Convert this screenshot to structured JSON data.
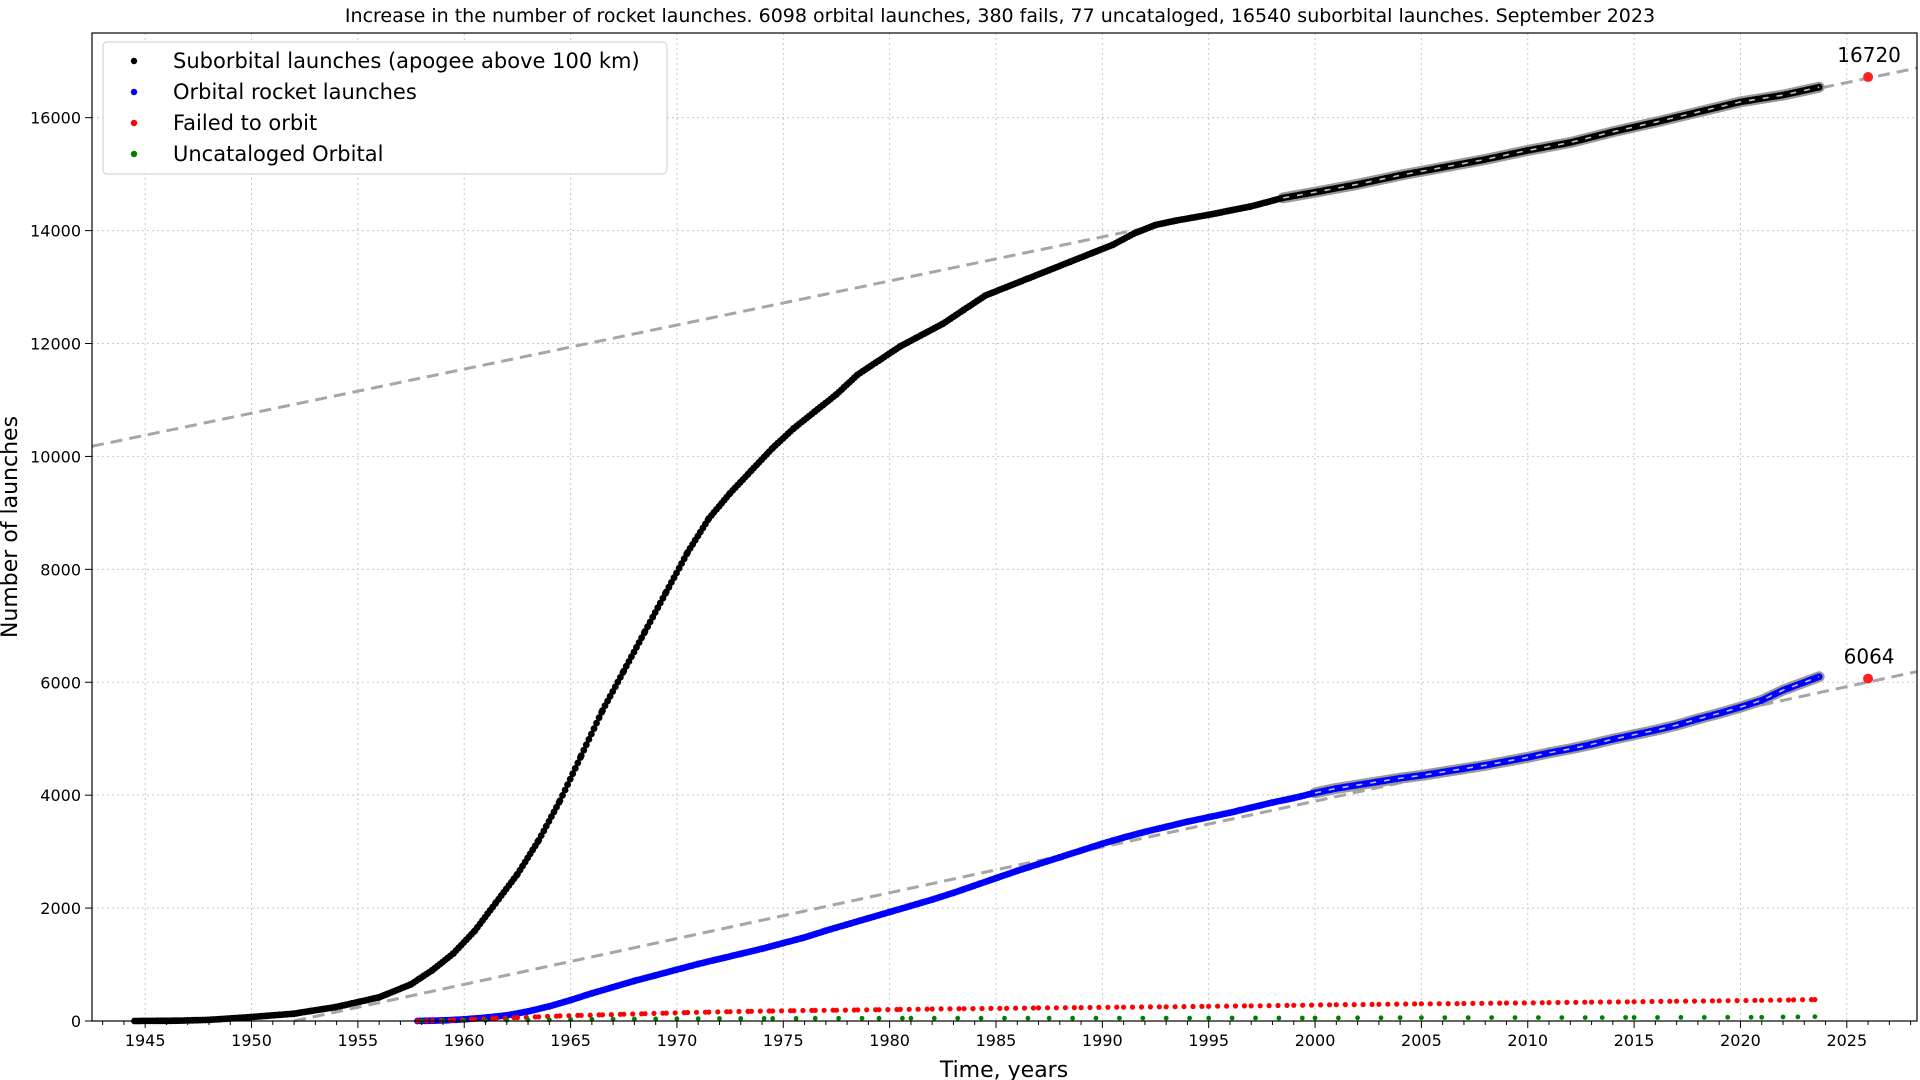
{
  "chart_data": {
    "type": "scatter",
    "title": "Increase in the number of rocket launches. 6098 orbital launches, 380 fails, 77 uncataloged, 16540 suborbital launches. September 2023",
    "xlabel": "Time, years",
    "ylabel": "Number of launches",
    "xlim": [
      1942.5,
      2028.3
    ],
    "ylim": [
      0,
      17500
    ],
    "x_ticks": [
      1945,
      1950,
      1955,
      1960,
      1965,
      1970,
      1975,
      1980,
      1985,
      1990,
      1995,
      2000,
      2005,
      2010,
      2015,
      2020,
      2025
    ],
    "y_ticks": [
      0,
      2000,
      4000,
      6000,
      8000,
      10000,
      12000,
      14000,
      16000
    ],
    "grid": true,
    "legend_position": "upper-left",
    "colors": {
      "suborbital": "#000000",
      "orbital": "#0000ff",
      "failed": "#ff0000",
      "uncataloged": "#008000",
      "trend": "#a6a6a6",
      "projection": "#ff2020"
    },
    "series": [
      {
        "name": "Suborbital launches (apogee above 100 km)",
        "key": "suborbital",
        "points": [
          [
            1944.5,
            0
          ],
          [
            1946.5,
            5
          ],
          [
            1948,
            20
          ],
          [
            1950,
            70
          ],
          [
            1952,
            130
          ],
          [
            1954,
            250
          ],
          [
            1956,
            420
          ],
          [
            1957.5,
            650
          ],
          [
            1958.5,
            900
          ],
          [
            1959.5,
            1200
          ],
          [
            1960.5,
            1600
          ],
          [
            1961.5,
            2100
          ],
          [
            1962.5,
            2600
          ],
          [
            1963.5,
            3200
          ],
          [
            1964.5,
            3900
          ],
          [
            1965.5,
            4700
          ],
          [
            1966.5,
            5500
          ],
          [
            1967.5,
            6200
          ],
          [
            1968.5,
            6900
          ],
          [
            1969.5,
            7600
          ],
          [
            1970.5,
            8300
          ],
          [
            1971.5,
            8900
          ],
          [
            1972.5,
            9350
          ],
          [
            1973.5,
            9750
          ],
          [
            1974.5,
            10150
          ],
          [
            1975.5,
            10500
          ],
          [
            1976.5,
            10800
          ],
          [
            1977.5,
            11100
          ],
          [
            1978.5,
            11450
          ],
          [
            1979.5,
            11700
          ],
          [
            1980.5,
            11950
          ],
          [
            1981.5,
            12150
          ],
          [
            1982.5,
            12350
          ],
          [
            1983.5,
            12600
          ],
          [
            1984.5,
            12850
          ],
          [
            1985.5,
            13000
          ],
          [
            1986.5,
            13150
          ],
          [
            1987.5,
            13300
          ],
          [
            1988.5,
            13450
          ],
          [
            1989.5,
            13600
          ],
          [
            1990.5,
            13750
          ],
          [
            1991.5,
            13950
          ],
          [
            1992.5,
            14100
          ],
          [
            1993.5,
            14180
          ],
          [
            1995,
            14280
          ],
          [
            1997,
            14430
          ],
          [
            1998.5,
            14580
          ],
          [
            2000,
            14680
          ],
          [
            2002,
            14820
          ],
          [
            2004,
            14980
          ],
          [
            2006,
            15120
          ],
          [
            2008,
            15260
          ],
          [
            2010,
            15420
          ],
          [
            2012,
            15560
          ],
          [
            2014,
            15750
          ],
          [
            2016,
            15920
          ],
          [
            2018,
            16100
          ],
          [
            2020,
            16280
          ],
          [
            2022,
            16400
          ],
          [
            2023.7,
            16540
          ]
        ]
      },
      {
        "name": "Orbital rocket launches",
        "key": "orbital",
        "points": [
          [
            1957.8,
            0
          ],
          [
            1959,
            10
          ],
          [
            1960,
            30
          ],
          [
            1961,
            60
          ],
          [
            1962,
            100
          ],
          [
            1963,
            170
          ],
          [
            1964,
            260
          ],
          [
            1965,
            370
          ],
          [
            1966,
            490
          ],
          [
            1967,
            600
          ],
          [
            1968,
            710
          ],
          [
            1969,
            810
          ],
          [
            1970,
            910
          ],
          [
            1971,
            1010
          ],
          [
            1972,
            1100
          ],
          [
            1973,
            1190
          ],
          [
            1974,
            1280
          ],
          [
            1975,
            1380
          ],
          [
            1976,
            1480
          ],
          [
            1977,
            1600
          ],
          [
            1978,
            1710
          ],
          [
            1979,
            1820
          ],
          [
            1980,
            1930
          ],
          [
            1981,
            2040
          ],
          [
            1982,
            2150
          ],
          [
            1983,
            2270
          ],
          [
            1984,
            2400
          ],
          [
            1985,
            2530
          ],
          [
            1986,
            2660
          ],
          [
            1987,
            2780
          ],
          [
            1988,
            2900
          ],
          [
            1989,
            3020
          ],
          [
            1990,
            3140
          ],
          [
            1991,
            3250
          ],
          [
            1992,
            3350
          ],
          [
            1993,
            3440
          ],
          [
            1994,
            3530
          ],
          [
            1995,
            3610
          ],
          [
            1996,
            3690
          ],
          [
            1997,
            3780
          ],
          [
            1998,
            3870
          ],
          [
            1999,
            3950
          ],
          [
            2000,
            4040
          ],
          [
            2001,
            4120
          ],
          [
            2002,
            4180
          ],
          [
            2003,
            4240
          ],
          [
            2004,
            4300
          ],
          [
            2005,
            4350
          ],
          [
            2006,
            4410
          ],
          [
            2007,
            4470
          ],
          [
            2008,
            4530
          ],
          [
            2009,
            4600
          ],
          [
            2010,
            4670
          ],
          [
            2011,
            4750
          ],
          [
            2012,
            4820
          ],
          [
            2013,
            4900
          ],
          [
            2014,
            4990
          ],
          [
            2015,
            5070
          ],
          [
            2016,
            5150
          ],
          [
            2017,
            5240
          ],
          [
            2018,
            5350
          ],
          [
            2019,
            5450
          ],
          [
            2020,
            5560
          ],
          [
            2021,
            5680
          ],
          [
            2022,
            5860
          ],
          [
            2023.7,
            6098
          ]
        ]
      },
      {
        "name": "Failed to orbit",
        "key": "failed",
        "points": [
          [
            1957.8,
            0
          ],
          [
            1958.5,
            5
          ],
          [
            1959.5,
            15
          ],
          [
            1960.5,
            30
          ],
          [
            1961.5,
            45
          ],
          [
            1962.5,
            60
          ],
          [
            1963.5,
            75
          ],
          [
            1964.5,
            90
          ],
          [
            1965.5,
            100
          ],
          [
            1966.5,
            110
          ],
          [
            1967.5,
            120
          ],
          [
            1968.5,
            130
          ],
          [
            1969.5,
            140
          ],
          [
            1970.5,
            150
          ],
          [
            1971.5,
            158
          ],
          [
            1972.5,
            165
          ],
          [
            1973.5,
            172
          ],
          [
            1974.5,
            178
          ],
          [
            1975.5,
            183
          ],
          [
            1976.5,
            188
          ],
          [
            1977.5,
            192
          ],
          [
            1978.5,
            196
          ],
          [
            1979.5,
            200
          ],
          [
            1980.5,
            205
          ],
          [
            1982,
            212
          ],
          [
            1983.5,
            218
          ],
          [
            1985.5,
            225
          ],
          [
            1987,
            232
          ],
          [
            1989,
            238
          ],
          [
            1991,
            245
          ],
          [
            1993,
            252
          ],
          [
            1995,
            260
          ],
          [
            1997,
            268
          ],
          [
            1999,
            278
          ],
          [
            2001,
            288
          ],
          [
            2003,
            296
          ],
          [
            2005,
            304
          ],
          [
            2007,
            310
          ],
          [
            2009,
            318
          ],
          [
            2011,
            326
          ],
          [
            2013,
            334
          ],
          [
            2015,
            342
          ],
          [
            2017,
            350
          ],
          [
            2019,
            358
          ],
          [
            2021,
            366
          ],
          [
            2022.5,
            374
          ],
          [
            2023.5,
            380
          ]
        ]
      },
      {
        "name": "Uncataloged Orbital",
        "key": "uncataloged",
        "points": [
          [
            1958,
            0
          ],
          [
            1959,
            3
          ],
          [
            1960,
            6
          ],
          [
            1961,
            10
          ],
          [
            1962,
            14
          ],
          [
            1963,
            18
          ],
          [
            1964,
            22
          ],
          [
            1965,
            26
          ],
          [
            1966,
            30
          ],
          [
            1967,
            33
          ],
          [
            1968,
            36
          ],
          [
            1969,
            38
          ],
          [
            1970,
            40
          ],
          [
            1971,
            42
          ],
          [
            1972,
            44
          ],
          [
            1973,
            45
          ],
          [
            1974.5,
            46
          ],
          [
            1976.5,
            47
          ],
          [
            1979.5,
            48
          ],
          [
            1981,
            49
          ],
          [
            1987.5,
            50
          ],
          [
            1995,
            52
          ],
          [
            2000,
            54
          ],
          [
            2002,
            56
          ],
          [
            2004,
            58
          ],
          [
            2005,
            59
          ],
          [
            2013.5,
            60
          ],
          [
            2015,
            62
          ],
          [
            2021,
            66
          ],
          [
            2022,
            70
          ],
          [
            2022.7,
            73
          ],
          [
            2023.5,
            77
          ]
        ]
      }
    ],
    "trend_lines": [
      {
        "key": "suborbital",
        "from": [
          1942.5,
          10180
        ],
        "to": [
          2028.3,
          16880
        ]
      },
      {
        "key": "orbital",
        "from": [
          1952,
          0
        ],
        "to": [
          2028.3,
          6190
        ]
      }
    ],
    "projections": [
      {
        "key": "suborbital",
        "point": [
          2026,
          16720
        ],
        "label": "16720"
      },
      {
        "key": "orbital",
        "point": [
          2026,
          6064
        ],
        "label": "6064"
      }
    ]
  }
}
